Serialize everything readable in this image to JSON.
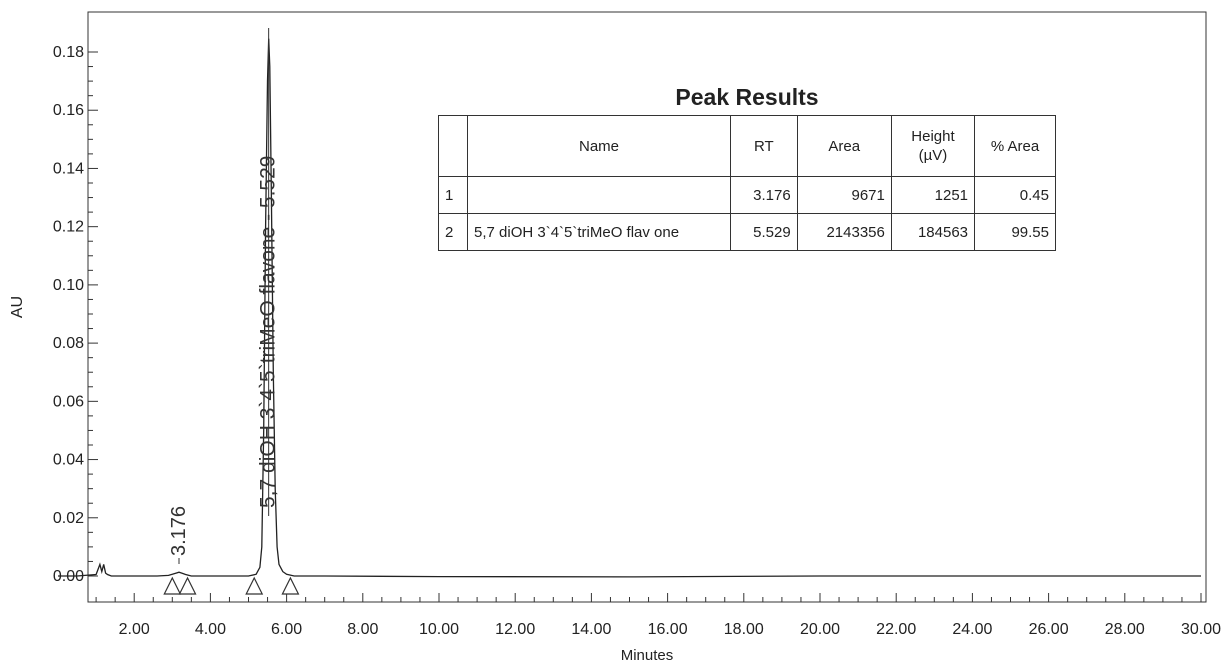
{
  "chart_data": {
    "type": "line",
    "title": "",
    "xlabel": "Minutes",
    "ylabel": "AU",
    "xlim": [
      0.0,
      30.0
    ],
    "ylim": [
      -0.008,
      0.19
    ],
    "x_ticks": [
      2,
      4,
      6,
      8,
      10,
      12,
      14,
      16,
      18,
      20,
      22,
      24,
      26,
      28,
      30
    ],
    "x_tick_labels": [
      "2.00",
      "4.00",
      "6.00",
      "8.00",
      "10.00",
      "12.00",
      "14.00",
      "16.00",
      "18.00",
      "20.00",
      "22.00",
      "24.00",
      "26.00",
      "28.00",
      "30.00"
    ],
    "y_ticks": [
      0,
      0.02,
      0.04,
      0.06,
      0.08,
      0.1,
      0.12,
      0.14,
      0.16,
      0.18
    ],
    "y_tick_labels": [
      "0.00",
      "0.02",
      "0.04",
      "0.06",
      "0.08",
      "0.10",
      "0.12",
      "0.14",
      "0.16",
      "0.18"
    ],
    "grid": false,
    "series": [
      {
        "x": [
          0.0,
          0.5,
          1.0,
          1.1,
          1.15,
          1.2,
          1.25,
          1.3,
          1.4,
          1.6,
          2.0,
          2.6,
          2.9,
          3.0,
          3.1,
          3.176,
          3.25,
          3.35,
          3.5,
          4.0,
          4.5,
          5.0,
          5.2,
          5.3,
          5.35,
          5.4,
          5.45,
          5.5,
          5.529,
          5.56,
          5.6,
          5.65,
          5.7,
          5.75,
          5.8,
          5.9,
          6.0,
          6.2,
          7.0,
          10.0,
          15.0,
          20.0,
          25.0,
          30.0
        ],
        "y": [
          0.0,
          0.0,
          0.0005,
          0.004,
          0.0015,
          0.004,
          0.001,
          0.0005,
          0.0,
          0.0,
          0.0,
          0.0,
          0.0002,
          0.0006,
          0.001,
          0.0013,
          0.001,
          0.0005,
          0.0,
          0.0,
          0.0,
          0.0,
          0.0006,
          0.003,
          0.01,
          0.05,
          0.12,
          0.17,
          0.1846,
          0.175,
          0.13,
          0.07,
          0.03,
          0.01,
          0.004,
          0.0015,
          0.0006,
          0.0,
          0.0,
          -0.0002,
          -0.0003,
          0.0,
          0.0,
          0.0
        ]
      }
    ],
    "peak_labels": [
      {
        "x": 3.176,
        "text": "3.176"
      },
      {
        "x": 5.529,
        "text": "5,7 diOH 3`4`5`triMeO flavone - 5.529"
      }
    ],
    "baseline_markers": [
      3.0,
      3.4,
      5.15,
      6.1
    ]
  },
  "peak_results": {
    "title": "Peak Results",
    "headers": {
      "num": "",
      "name": "Name",
      "rt": "RT",
      "area": "Area",
      "height_line1": "Height",
      "height_line2": "(µV)",
      "pct_area": "% Area"
    },
    "rows": [
      {
        "num": "1",
        "name": "",
        "rt": "3.176",
        "area": "9671",
        "height": "1251",
        "pct_area": "0.45"
      },
      {
        "num": "2",
        "name": "5,7 diOH 3`4`5`triMeO flav one",
        "rt": "5.529",
        "area": "2143356",
        "height": "184563",
        "pct_area": "99.55"
      }
    ]
  }
}
